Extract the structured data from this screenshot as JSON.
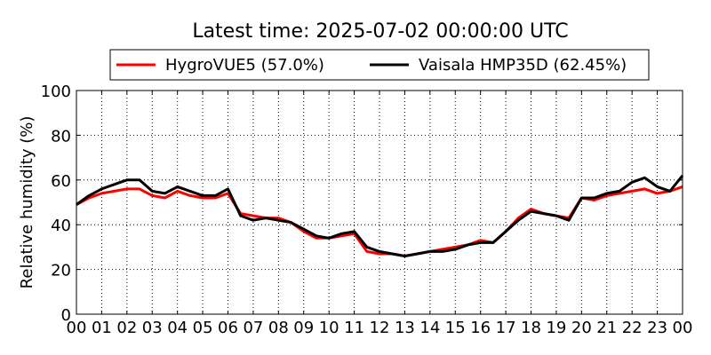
{
  "chart_data": {
    "type": "line",
    "title": "Latest time: 2025-07-02 00:00:00 UTC",
    "xlabel": "",
    "ylabel": "Relative humidity (%)",
    "xlim": [
      0,
      24
    ],
    "ylim": [
      0,
      100
    ],
    "grid": true,
    "legend_placement": "top-center",
    "x_ticks": [
      "00",
      "01",
      "02",
      "03",
      "04",
      "05",
      "06",
      "07",
      "08",
      "09",
      "10",
      "11",
      "12",
      "13",
      "14",
      "15",
      "16",
      "17",
      "18",
      "19",
      "20",
      "21",
      "22",
      "23",
      "00"
    ],
    "y_ticks": [
      "0",
      "20",
      "40",
      "60",
      "80",
      "100"
    ],
    "x_hours": [
      0,
      0.5,
      1,
      1.5,
      2,
      2.5,
      3,
      3.5,
      4,
      4.5,
      5,
      5.5,
      6,
      6.5,
      7,
      7.5,
      8,
      8.5,
      9,
      9.5,
      10,
      10.5,
      11,
      11.5,
      12,
      12.5,
      13,
      13.5,
      14,
      14.5,
      15,
      15.5,
      16,
      16.5,
      17,
      17.5,
      18,
      18.5,
      19,
      19.5,
      20,
      20.5,
      21,
      21.5,
      22,
      22.5,
      23,
      23.5,
      24
    ],
    "series": [
      {
        "name": "HygroVUE5 (57.0%)",
        "color": "#ff0000",
        "values": [
          49,
          52,
          54,
          55,
          56,
          56,
          53,
          52,
          55,
          53,
          52,
          52,
          54,
          45,
          44,
          43,
          43,
          41,
          37,
          34,
          34,
          35,
          36,
          28,
          27,
          27,
          26,
          27,
          28,
          29,
          30,
          31,
          33,
          32,
          37,
          43,
          47,
          45,
          44,
          43,
          52,
          51,
          53,
          54,
          55,
          56,
          54,
          55,
          57
        ]
      },
      {
        "name": "Vaisala HMP35D (62.45%)",
        "color": "#000000",
        "values": [
          49,
          53,
          56,
          58,
          60,
          60,
          55,
          54,
          57,
          55,
          53,
          53,
          56,
          44,
          42,
          43,
          42,
          41,
          38,
          35,
          34,
          36,
          37,
          30,
          28,
          27,
          26,
          27,
          28,
          28,
          29,
          31,
          32,
          32,
          37,
          42,
          46,
          45,
          44,
          42,
          52,
          52,
          54,
          55,
          59,
          61,
          57,
          55,
          62
        ]
      }
    ]
  }
}
